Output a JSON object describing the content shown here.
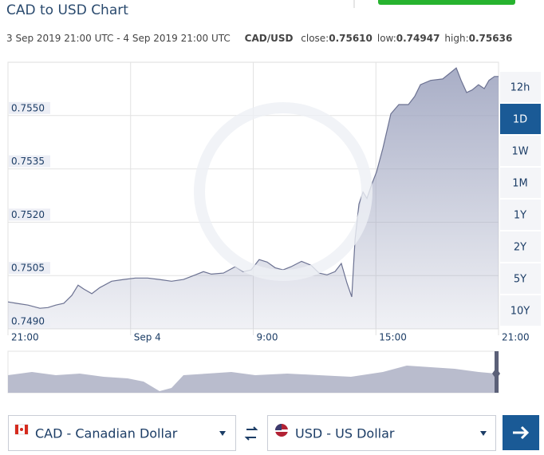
{
  "chart_data": {
    "type": "area",
    "title": "CAD to USD Chart",
    "range": "3 Sep 2019 21:00 UTC - 4 Sep 2019 21:00 UTC",
    "pair": "CAD/USD",
    "stats": [
      {
        "label": "close:",
        "value": "0.75610"
      },
      {
        "label": "low:",
        "value": "0.74947"
      },
      {
        "label": "high:",
        "value": "0.75636"
      }
    ],
    "color": "#9fa5c0",
    "grid": true,
    "xlim": [
      0,
      24
    ],
    "xticks": [
      {
        "value": 0,
        "label": "21:00"
      },
      {
        "value": 6,
        "label": "Sep 4"
      },
      {
        "value": 12,
        "label": "9:00"
      },
      {
        "value": 18,
        "label": "15:00"
      },
      {
        "value": 24,
        "label": "21:00"
      }
    ],
    "ylim": [
      0.749,
      0.7565
    ],
    "yticks": [
      {
        "value": 0.749,
        "label": "0.7490"
      },
      {
        "value": 0.7505,
        "label": "0.7505"
      },
      {
        "value": 0.752,
        "label": "0.7520"
      },
      {
        "value": 0.7535,
        "label": "0.7535"
      },
      {
        "value": 0.755,
        "label": "0.7550"
      }
    ],
    "x": [
      0,
      0.39,
      0.98,
      1.56,
      1.95,
      2.34,
      2.73,
      3.12,
      3.43,
      3.71,
      4.1,
      4.49,
      5.07,
      5.66,
      6.24,
      6.83,
      7.41,
      8.0,
      8.59,
      9.17,
      9.56,
      9.95,
      10.54,
      11.12,
      11.51,
      11.9,
      12.29,
      12.68,
      13.07,
      13.46,
      13.85,
      14.36,
      14.83,
      15.22,
      15.61,
      16.0,
      16.31,
      16.59,
      16.82,
      16.98,
      17.17,
      17.37,
      17.56,
      17.8,
      18.03,
      18.34,
      18.73,
      19.12,
      19.59,
      19.9,
      20.18,
      20.68,
      21.27,
      21.66,
      21.93,
      22.17,
      22.44,
      22.71,
      23.02,
      23.3,
      23.53,
      23.8,
      24.0
    ],
    "values": [
      0.74976,
      0.74972,
      0.74967,
      0.74958,
      0.7496,
      0.74967,
      0.74972,
      0.74994,
      0.75023,
      0.75012,
      0.74999,
      0.75016,
      0.75034,
      0.75039,
      0.75043,
      0.75043,
      0.75039,
      0.75034,
      0.75039,
      0.75052,
      0.75061,
      0.75054,
      0.75057,
      0.75075,
      0.75061,
      0.75066,
      0.75095,
      0.75088,
      0.75072,
      0.75066,
      0.75075,
      0.7509,
      0.75079,
      0.75057,
      0.75052,
      0.75061,
      0.75084,
      0.75028,
      0.7499,
      0.75151,
      0.75251,
      0.75285,
      0.75267,
      0.75307,
      0.75341,
      0.75408,
      0.75505,
      0.75531,
      0.75531,
      0.75554,
      0.75587,
      0.75599,
      0.75603,
      0.75621,
      0.75634,
      0.75599,
      0.75565,
      0.75572,
      0.75587,
      0.75576,
      0.75599,
      0.7561,
      0.7561
    ],
    "range_buttons": [
      "12h",
      "1D",
      "1W",
      "1M",
      "1Y",
      "2Y",
      "5Y",
      "10Y"
    ],
    "selected_range": 1,
    "from_currency": "CAD - Canadian Dollar",
    "to_currency": "USD - US Dollar"
  }
}
